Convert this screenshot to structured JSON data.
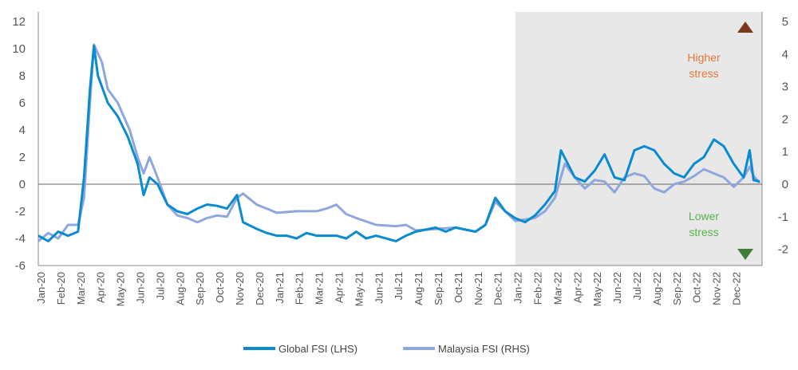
{
  "chart_data": {
    "type": "line",
    "title": "",
    "x_labels": [
      "Jan-20",
      "Feb-20",
      "Mar-20",
      "Apr-20",
      "May-20",
      "Jun-20",
      "Jul-20",
      "Aug-20",
      "Sep-20",
      "Oct-20",
      "Nov-20",
      "Dec-20",
      "Jan-21",
      "Feb-21",
      "Mar-21",
      "Apr-21",
      "May-21",
      "Jun-21",
      "Jul-21",
      "Aug-21",
      "Sep-21",
      "Oct-21",
      "Nov-21",
      "Dec-21",
      "Jan-22",
      "Feb-22",
      "Mar-22",
      "Apr-22",
      "May-22",
      "Jun-22",
      "Jul-22",
      "Aug-22",
      "Sep-22",
      "Oct-22",
      "Nov-22",
      "Dec-22"
    ],
    "y_left": {
      "ticks": [
        "12",
        "10",
        "8",
        "6",
        "4",
        "2",
        "0",
        "-2",
        "-4",
        "-6"
      ],
      "range": [
        -6,
        12
      ]
    },
    "y_right": {
      "ticks": [
        "5",
        "4",
        "3",
        "2",
        "1",
        "0",
        "-1",
        "-2"
      ],
      "range": [
        -2.5,
        5
      ]
    },
    "shaded_from": "Jan-22",
    "annotations": {
      "higher": "Higher stress",
      "lower": "Lower stress"
    },
    "colors": {
      "global": "#0a8bd0",
      "malaysia": "#8ea7dc",
      "shade": "#e8e8e8",
      "higher": "#e4773a",
      "lower": "#52b447"
    },
    "series": [
      {
        "name": "Global FSI (LHS)",
        "axis": "left",
        "t": [
          0,
          0.5,
          1,
          1.5,
          2,
          2.3,
          2.6,
          2.8,
          3,
          3.5,
          4,
          4.5,
          5,
          5.3,
          5.6,
          6,
          6.5,
          7,
          7.5,
          8,
          8.5,
          9,
          9.5,
          10,
          10.3,
          11,
          11.5,
          12,
          12.5,
          13,
          13.5,
          14,
          15,
          15.5,
          16,
          16.5,
          17,
          18,
          18.5,
          19,
          20,
          20.5,
          21,
          22,
          22.5,
          23,
          23.5,
          24,
          24.5,
          25,
          25.5,
          26,
          26.3,
          27,
          27.5,
          28,
          28.5,
          29,
          29.5,
          30,
          30.5,
          31,
          31.5,
          32,
          32.5,
          33,
          33.5,
          34,
          34.5,
          35,
          35.5,
          35.8,
          36,
          36.3
        ],
        "values": [
          -3.8,
          -4.2,
          -3.5,
          -3.8,
          -3.5,
          0.5,
          7,
          10.2,
          8,
          6,
          5,
          3.5,
          1.5,
          -0.8,
          0.5,
          0,
          -1.5,
          -2,
          -2.2,
          -1.8,
          -1.5,
          -1.6,
          -1.8,
          -0.8,
          -2.8,
          -3.3,
          -3.6,
          -3.8,
          -3.8,
          -4,
          -3.6,
          -3.8,
          -3.8,
          -4,
          -3.5,
          -4,
          -3.8,
          -4.2,
          -3.8,
          -3.5,
          -3.2,
          -3.5,
          -3.2,
          -3.5,
          -3,
          -1,
          -2,
          -2.5,
          -2.8,
          -2.3,
          -1.5,
          -0.5,
          2.5,
          0.5,
          0.2,
          1,
          2.2,
          0.5,
          0.3,
          2.5,
          2.8,
          2.5,
          1.5,
          0.8,
          0.5,
          1.5,
          2,
          3.3,
          2.8,
          1.5,
          0.5,
          2.5,
          0.3,
          0.2
        ]
      },
      {
        "name": "Malaysia FSI (RHS)",
        "axis": "right",
        "t": [
          0,
          0.5,
          1,
          1.5,
          2,
          2.3,
          2.6,
          2.8,
          3.2,
          3.5,
          4,
          4.3,
          4.6,
          5,
          5.3,
          5.6,
          6,
          6.5,
          7,
          7.5,
          8,
          8.5,
          9,
          9.5,
          10,
          10.3,
          11,
          11.5,
          12,
          13,
          14,
          14.5,
          15,
          15.5,
          16,
          17,
          18,
          18.5,
          19,
          20,
          21,
          22,
          22.5,
          23,
          23.5,
          24,
          25,
          25.5,
          26,
          26.5,
          27,
          27.5,
          28,
          28.5,
          29,
          29.5,
          30,
          30.5,
          31,
          31.5,
          32,
          32.5,
          33,
          33.5,
          34,
          34.5,
          35,
          35.5,
          35.8,
          36,
          36.3
        ],
        "values": [
          -1.75,
          -1.5,
          -1.67,
          -1.25,
          -1.25,
          -0.42,
          2.5,
          4.29,
          3.75,
          2.92,
          2.5,
          2.08,
          1.67,
          0.83,
          0.33,
          0.83,
          0.21,
          -0.63,
          -0.96,
          -1.04,
          -1.17,
          -1.04,
          -0.96,
          -1.0,
          -0.42,
          -0.29,
          -0.63,
          -0.75,
          -0.88,
          -0.83,
          -0.83,
          -0.75,
          -0.63,
          -0.92,
          -1.04,
          -1.25,
          -1.29,
          -1.25,
          -1.42,
          -1.38,
          -1.33,
          -1.46,
          -1.25,
          -0.54,
          -0.83,
          -1.13,
          -1.04,
          -0.83,
          -0.42,
          0.63,
          0.21,
          -0.13,
          0.13,
          0.08,
          -0.25,
          0.21,
          0.33,
          0.25,
          -0.13,
          -0.25,
          0.0,
          0.08,
          0.25,
          0.46,
          0.33,
          0.21,
          -0.08,
          0.21,
          0.54,
          0.25,
          0.04
        ]
      }
    ],
    "legend": {
      "position": "bottom",
      "items": [
        "Global FSI (LHS)",
        "Malaysia FSI (RHS)"
      ]
    },
    "xlabel": "",
    "ylabel": ""
  }
}
